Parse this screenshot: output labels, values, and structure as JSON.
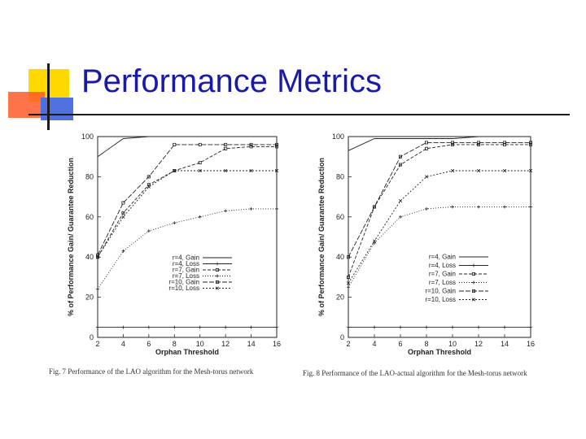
{
  "slide": {
    "title": "Performance Metrics"
  },
  "chart_data": [
    {
      "type": "line",
      "caption": "Fig. 7 Performance of the LAO algorithm for the Mesh-torus network",
      "xlabel": "Orphan Threshold",
      "ylabel": "% of Performance Gain/ Guarantee Reduction",
      "xlim": [
        2,
        16
      ],
      "ylim": [
        0,
        100
      ],
      "xticks": [
        2,
        4,
        6,
        8,
        10,
        12,
        14,
        16
      ],
      "yticks": [
        0,
        20,
        40,
        60,
        80,
        100
      ],
      "legend_position": "bottom-right",
      "x": [
        2,
        4,
        6,
        8,
        10,
        12,
        14,
        16
      ],
      "series": [
        {
          "name": "r=4, Gain",
          "values": [
            90,
            99,
            100,
            100,
            100,
            100,
            100,
            100
          ]
        },
        {
          "name": "r=4, Loss",
          "values": [
            5,
            5,
            5,
            5,
            5,
            5,
            5,
            5
          ]
        },
        {
          "name": "r=7, Gain",
          "values": [
            40,
            62,
            76,
            83,
            87,
            94,
            95,
            95
          ]
        },
        {
          "name": "r=7, Loss",
          "values": [
            24,
            43,
            53,
            57,
            60,
            63,
            64,
            64
          ]
        },
        {
          "name": "r=10, Gain",
          "values": [
            41,
            67,
            80,
            96,
            96,
            96,
            96,
            96
          ]
        },
        {
          "name": "r=10, Loss",
          "values": [
            40,
            60,
            75,
            83,
            83,
            83,
            83,
            83
          ]
        }
      ]
    },
    {
      "type": "line",
      "caption": "Fig. 8 Performance of the LAO-actual algorithm for the Mesh-torus network",
      "xlabel": "Orphan Threshold",
      "ylabel": "% of Performance Gain/ Guarantee Reduction",
      "xlim": [
        2,
        16
      ],
      "ylim": [
        0,
        100
      ],
      "xticks": [
        2,
        4,
        6,
        8,
        10,
        12,
        14,
        16
      ],
      "yticks": [
        0,
        20,
        40,
        60,
        80,
        100
      ],
      "legend_position": "bottom-right",
      "x": [
        2,
        4,
        6,
        8,
        10,
        12,
        14,
        16
      ],
      "series": [
        {
          "name": "r=4, Gain",
          "values": [
            93,
            99,
            99,
            99,
            99,
            100,
            100,
            100
          ]
        },
        {
          "name": "r=4, Loss",
          "values": [
            5,
            5,
            5,
            5,
            5,
            5,
            5,
            5
          ]
        },
        {
          "name": "r=7, Gain",
          "values": [
            30,
            65,
            86,
            94,
            96,
            96,
            96,
            96
          ]
        },
        {
          "name": "r=7, Loss",
          "values": [
            25,
            47,
            60,
            64,
            65,
            65,
            65,
            65
          ]
        },
        {
          "name": "r=10, Gain",
          "values": [
            40,
            65,
            90,
            97,
            97,
            97,
            97,
            97
          ]
        },
        {
          "name": "r=10, Loss",
          "values": [
            27,
            48,
            68,
            80,
            83,
            83,
            83,
            83
          ]
        }
      ]
    }
  ]
}
